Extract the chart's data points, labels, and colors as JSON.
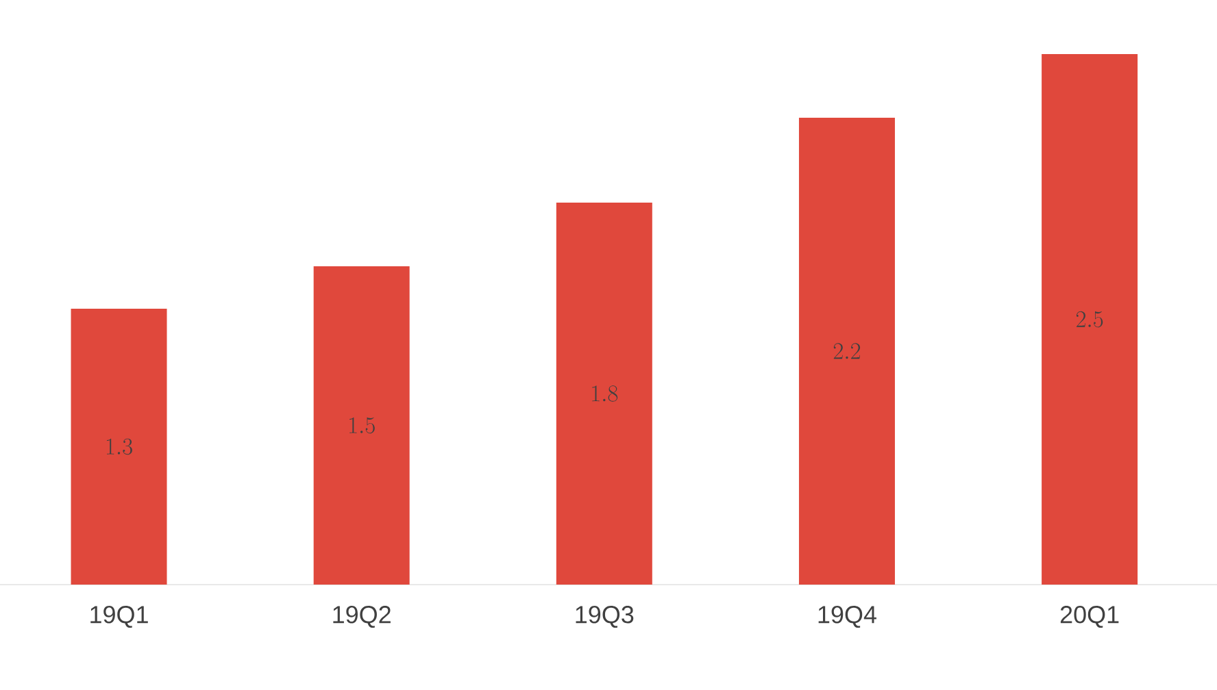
{
  "chart_data": {
    "type": "bar",
    "categories": [
      "19Q1",
      "19Q2",
      "19Q3",
      "19Q4",
      "20Q1"
    ],
    "values": [
      1.3,
      1.5,
      1.8,
      2.2,
      2.5
    ],
    "color": "#e0483c",
    "data_labels": true
  }
}
